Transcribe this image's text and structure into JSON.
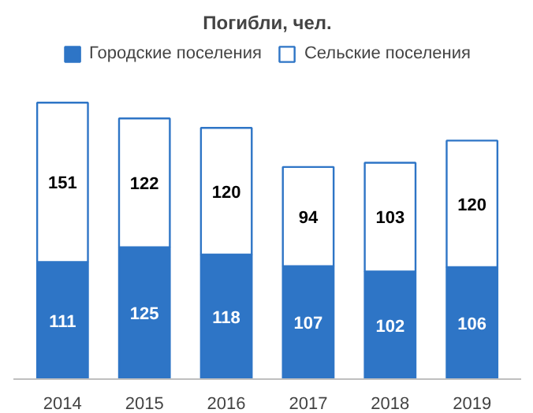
{
  "chart_data": {
    "type": "bar",
    "title": "Погибли, чел.",
    "stacked": true,
    "data_labels": true,
    "legend": "top",
    "grid": false,
    "categories": [
      "2014",
      "2015",
      "2016",
      "2017",
      "2018",
      "2019"
    ],
    "series": [
      {
        "name": "Городские поселения",
        "color": "#2e75c6",
        "values": [
          111,
          125,
          118,
          107,
          102,
          106
        ]
      },
      {
        "name": "Сельские поселения",
        "color": "#ffffff",
        "values": [
          151,
          122,
          120,
          94,
          103,
          120
        ]
      }
    ]
  }
}
